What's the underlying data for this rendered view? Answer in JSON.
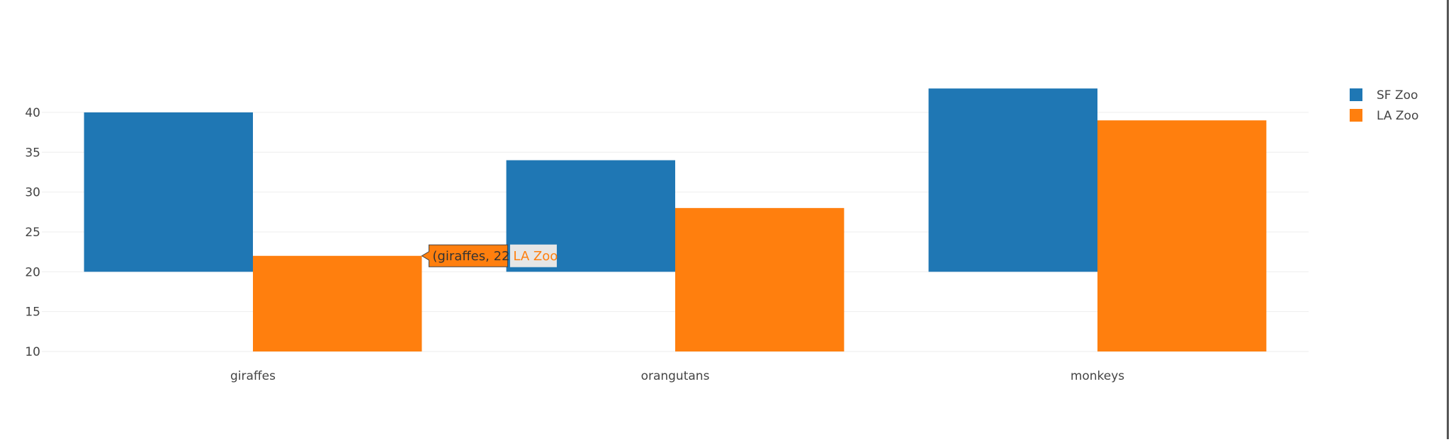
{
  "chart_data": {
    "type": "bar",
    "barmode": "group",
    "categories": [
      "giraffes",
      "orangutans",
      "monkeys"
    ],
    "series": [
      {
        "name": "SF Zoo",
        "color": "#1f77b4",
        "base": [
          20,
          20,
          20
        ],
        "values": [
          40,
          34,
          43
        ]
      },
      {
        "name": "LA Zoo",
        "color": "#ff7f0e",
        "base": [
          0,
          0,
          0
        ],
        "values": [
          22,
          28,
          39
        ]
      }
    ],
    "yticks": [
      10,
      15,
      20,
      25,
      30,
      35,
      40
    ],
    "ylim": [
      10,
      43.1
    ],
    "grid": true,
    "legend_position": "top-right",
    "hover": {
      "category": "giraffes",
      "series": "LA Zoo",
      "text": "(giraffes, 22)",
      "name": "LA Zoo"
    }
  },
  "colors": {
    "grid": "#eeeeee",
    "tick_text": "#444444"
  }
}
